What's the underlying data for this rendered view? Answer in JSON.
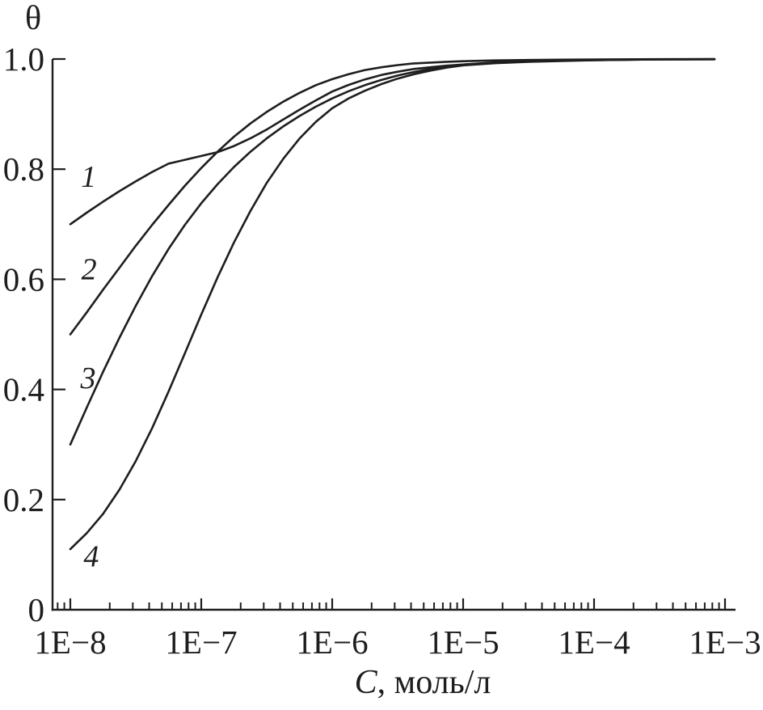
{
  "figure": {
    "background": "#ffffff",
    "ink": "#1e1e1e"
  },
  "chart_data": {
    "type": "line",
    "title": "",
    "ylabel": "θ",
    "xlabel": "C, моль/л",
    "xlabel_var": "C",
    "xlabel_rest": ", моль/л",
    "x_scale": "log",
    "grid": false,
    "legend": "inline numeric labels near curve start",
    "xlim_log": [
      -8.15,
      -2.95
    ],
    "ylim": [
      0,
      1.0
    ],
    "x_ticks": [
      {
        "label": "1E−8",
        "logC": -8
      },
      {
        "label": "1E−7",
        "logC": -7
      },
      {
        "label": "1E−6",
        "logC": -6
      },
      {
        "label": "1E−5",
        "logC": -5
      },
      {
        "label": "1E−4",
        "logC": -4
      },
      {
        "label": "1E−3",
        "logC": -3
      }
    ],
    "minor_ticks": "log sub-decades 2–9 between 8e-9 and 1e-3",
    "y_ticks": [
      {
        "label": "0",
        "value": 0
      },
      {
        "label": "0.2",
        "value": 0.2
      },
      {
        "label": "0.4",
        "value": 0.4
      },
      {
        "label": "0.6",
        "value": 0.6
      },
      {
        "label": "0.8",
        "value": 0.8
      },
      {
        "label": "1.0",
        "value": 1.0
      }
    ],
    "x_logC": [
      -8,
      -7.875,
      -7.75,
      -7.625,
      -7.5,
      -7.375,
      -7.25,
      -7.125,
      -7,
      -6.875,
      -6.75,
      -6.625,
      -6.5,
      -6.375,
      -6.25,
      -6.125,
      -6,
      -5.875,
      -5.75,
      -5.625,
      -5.5,
      -5.375,
      -5.25,
      -5.125,
      -5,
      -4.75,
      -4.5,
      -4.25,
      -4,
      -3.5,
      -3.08
    ],
    "series": [
      {
        "name": "1",
        "label_at": {
          "logC": -7.86,
          "theta": 0.787
        },
        "theta": [
          0.7,
          0.721,
          0.741,
          0.76,
          0.778,
          0.795,
          0.81,
          0.817,
          0.824,
          0.831,
          0.842,
          0.856,
          0.872,
          0.89,
          0.908,
          0.925,
          0.941,
          0.953,
          0.963,
          0.971,
          0.977,
          0.982,
          0.985,
          0.988,
          0.99,
          0.9935,
          0.9955,
          0.997,
          0.998,
          0.9992,
          0.9996
        ]
      },
      {
        "name": "2",
        "label_at": {
          "logC": -7.857,
          "theta": 0.619
        },
        "theta": [
          0.5,
          0.54,
          0.581,
          0.621,
          0.661,
          0.699,
          0.735,
          0.77,
          0.802,
          0.832,
          0.859,
          0.883,
          0.904,
          0.9225,
          0.9385,
          0.9525,
          0.9635,
          0.9725,
          0.98,
          0.985,
          0.989,
          0.992,
          0.9935,
          0.995,
          0.996,
          0.9975,
          0.9983,
          0.9988,
          0.9992,
          0.9997,
          0.9999
        ]
      },
      {
        "name": "3",
        "label_at": {
          "logC": -7.864,
          "theta": 0.4215
        },
        "theta": [
          0.3,
          0.367,
          0.432,
          0.494,
          0.552,
          0.606,
          0.655,
          0.699,
          0.738,
          0.773,
          0.804,
          0.8315,
          0.856,
          0.8775,
          0.8965,
          0.9135,
          0.9285,
          0.9415,
          0.9525,
          0.962,
          0.97,
          0.9765,
          0.982,
          0.986,
          0.99,
          0.994,
          0.9962,
          0.9975,
          0.9985,
          0.9994,
          0.9997
        ]
      },
      {
        "name": "4",
        "label_at": {
          "logC": -7.84,
          "theta": 0.098
        },
        "theta": [
          0.11,
          0.139,
          0.174,
          0.218,
          0.27,
          0.33,
          0.396,
          0.466,
          0.536,
          0.604,
          0.667,
          0.724,
          0.775,
          0.8185,
          0.8555,
          0.886,
          0.9105,
          0.9285,
          0.9425,
          0.9545,
          0.9645,
          0.9725,
          0.979,
          0.9845,
          0.9885,
          0.9925,
          0.995,
          0.9965,
          0.998,
          0.9992,
          0.9996
        ]
      }
    ],
    "notes": "Curves 1 and 2 cross near C≈1.3e-7, θ≈0.83; all curves saturate to θ=1 by C≈1e-5 and continue as one flat line to 1e-3."
  }
}
